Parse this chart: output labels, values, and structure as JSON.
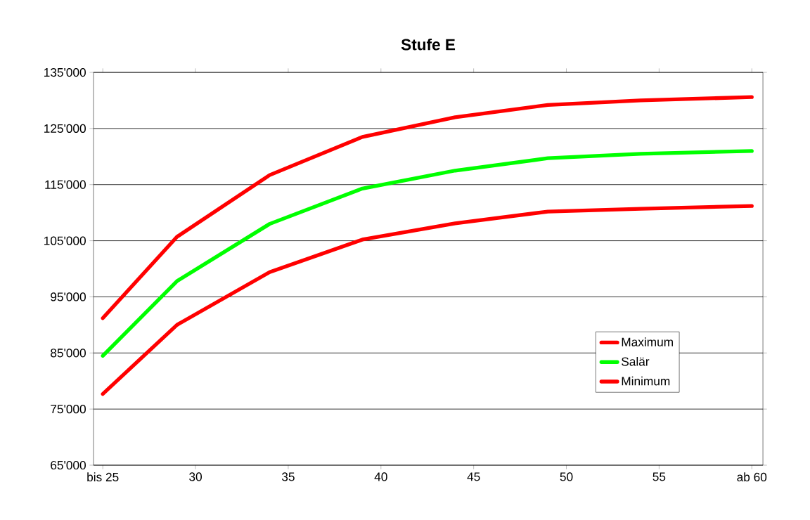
{
  "chart_data": {
    "type": "line",
    "title": "Stufe E",
    "x": [
      25,
      29,
      34,
      39,
      44,
      49,
      54,
      60
    ],
    "series": [
      {
        "name": "Maximum",
        "color": "#ff0000",
        "values": [
          91200,
          105700,
          116700,
          123500,
          127000,
          129200,
          130000,
          130600
        ]
      },
      {
        "name": "Salär",
        "color": "#00ff00",
        "values": [
          84500,
          97800,
          108000,
          114300,
          117500,
          119700,
          120500,
          121000
        ]
      },
      {
        "name": "Minimum",
        "color": "#ff0000",
        "values": [
          77700,
          90000,
          99400,
          105200,
          108100,
          110200,
          110700,
          111200
        ]
      }
    ],
    "xlim": [
      24.5,
      60.6
    ],
    "xticks": [
      {
        "value": 25,
        "label": "bis 25"
      },
      30,
      35,
      40,
      45,
      50,
      55,
      {
        "value": 60,
        "label": "ab 60"
      }
    ],
    "ylim": [
      65000,
      135000
    ],
    "yticks": [
      {
        "value": 65000,
        "label": "65'000"
      },
      {
        "value": 75000,
        "label": "75'000"
      },
      {
        "value": 85000,
        "label": "85'000"
      },
      {
        "value": 95000,
        "label": "95'000"
      },
      {
        "value": 105000,
        "label": "105'000"
      },
      {
        "value": 115000,
        "label": "115'000"
      },
      {
        "value": 125000,
        "label": "125'000"
      },
      {
        "value": 135000,
        "label": "135'000"
      }
    ],
    "grid": "y",
    "legend": "bottom right",
    "marker": "none",
    "line_style": "solid"
  }
}
